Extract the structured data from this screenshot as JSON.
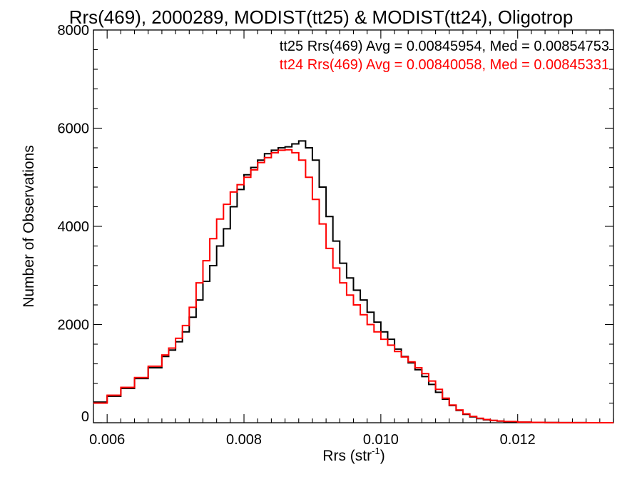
{
  "chart_data": {
    "type": "line",
    "title": "Rrs(469), 2000289, MODIST(tt25) & MODIST(tt24), Oligotrop",
    "xlabel": "Rrs (str",
    "xlabel_sup": "-1",
    "xlabel_end": ")",
    "ylabel": "Number of Observations",
    "xlim": [
      0.0058,
      0.0134
    ],
    "ylim": [
      0,
      8000
    ],
    "x_ticks": [
      {
        "value": 0.006,
        "label": "0.006"
      },
      {
        "value": 0.008,
        "label": "0.008"
      },
      {
        "value": 0.01,
        "label": "0.010"
      },
      {
        "value": 0.012,
        "label": "0.012"
      }
    ],
    "y_ticks": [
      {
        "value": 0,
        "label": "0"
      },
      {
        "value": 2000,
        "label": "2000"
      },
      {
        "value": 4000,
        "label": "4000"
      },
      {
        "value": 6000,
        "label": "6000"
      },
      {
        "value": 8000,
        "label": "8000"
      }
    ],
    "legend_position": "top-right",
    "series": [
      {
        "label": "tt25 Rrs(469) Avg = 0.00845954, Med = 0.00854753",
        "color": "#000000",
        "x": [
          0.0058,
          0.006,
          0.0062,
          0.0064,
          0.0066,
          0.0068,
          0.0069,
          0.007,
          0.0071,
          0.0072,
          0.0073,
          0.0074,
          0.0075,
          0.0076,
          0.0077,
          0.0078,
          0.0079,
          0.008,
          0.0081,
          0.0082,
          0.0083,
          0.0084,
          0.0085,
          0.0086,
          0.0087,
          0.0088,
          0.0089,
          0.009,
          0.0091,
          0.0092,
          0.0093,
          0.0094,
          0.0095,
          0.0096,
          0.0097,
          0.0098,
          0.0099,
          0.01,
          0.0101,
          0.0102,
          0.0103,
          0.0104,
          0.0105,
          0.0106,
          0.0107,
          0.0108,
          0.0109,
          0.011,
          0.0111,
          0.0112,
          0.0113,
          0.0114,
          0.0115,
          0.0116,
          0.0117,
          0.0118,
          0.012,
          0.0122,
          0.0124,
          0.0126,
          0.0128,
          0.013,
          0.0132,
          0.0134
        ],
        "y": [
          420,
          540,
          700,
          900,
          1120,
          1350,
          1480,
          1650,
          1850,
          2150,
          2500,
          2880,
          3200,
          3600,
          3950,
          4400,
          4750,
          5050,
          5200,
          5350,
          5480,
          5550,
          5600,
          5620,
          5680,
          5740,
          5600,
          5350,
          4800,
          4200,
          3700,
          3250,
          2950,
          2700,
          2500,
          2250,
          2050,
          1850,
          1700,
          1500,
          1350,
          1220,
          1080,
          940,
          780,
          620,
          480,
          350,
          250,
          170,
          120,
          85,
          60,
          45,
          32,
          22,
          12,
          7,
          4,
          2,
          1,
          0,
          0,
          0
        ]
      },
      {
        "label": "tt24 Rrs(469) Avg = 0.00840058, Med = 0.00845331",
        "color": "#ff0000",
        "x": [
          0.0058,
          0.006,
          0.0062,
          0.0064,
          0.0066,
          0.0068,
          0.0069,
          0.007,
          0.0071,
          0.0072,
          0.0073,
          0.0074,
          0.0075,
          0.0076,
          0.0077,
          0.0078,
          0.0079,
          0.008,
          0.0081,
          0.0082,
          0.0083,
          0.0084,
          0.0085,
          0.0086,
          0.0087,
          0.0088,
          0.0089,
          0.009,
          0.0091,
          0.0092,
          0.0093,
          0.0094,
          0.0095,
          0.0096,
          0.0097,
          0.0098,
          0.0099,
          0.01,
          0.0101,
          0.0102,
          0.0103,
          0.0104,
          0.0105,
          0.0106,
          0.0107,
          0.0108,
          0.0109,
          0.011,
          0.0111,
          0.0112,
          0.0113,
          0.0114,
          0.0115,
          0.0116,
          0.0117,
          0.0118,
          0.012,
          0.0122,
          0.0124,
          0.0126,
          0.0128,
          0.013,
          0.0132,
          0.0134
        ],
        "y": [
          400,
          560,
          720,
          920,
          1150,
          1380,
          1520,
          1720,
          1980,
          2350,
          2850,
          3300,
          3750,
          4150,
          4450,
          4700,
          4850,
          5000,
          5150,
          5300,
          5400,
          5500,
          5550,
          5560,
          5500,
          5350,
          5000,
          4550,
          4050,
          3550,
          3150,
          2850,
          2600,
          2400,
          2200,
          2000,
          1850,
          1700,
          1580,
          1450,
          1340,
          1240,
          1120,
          1000,
          850,
          680,
          500,
          360,
          260,
          180,
          130,
          90,
          65,
          48,
          35,
          25,
          13,
          8,
          4,
          2,
          1,
          0,
          0,
          0
        ]
      }
    ]
  }
}
